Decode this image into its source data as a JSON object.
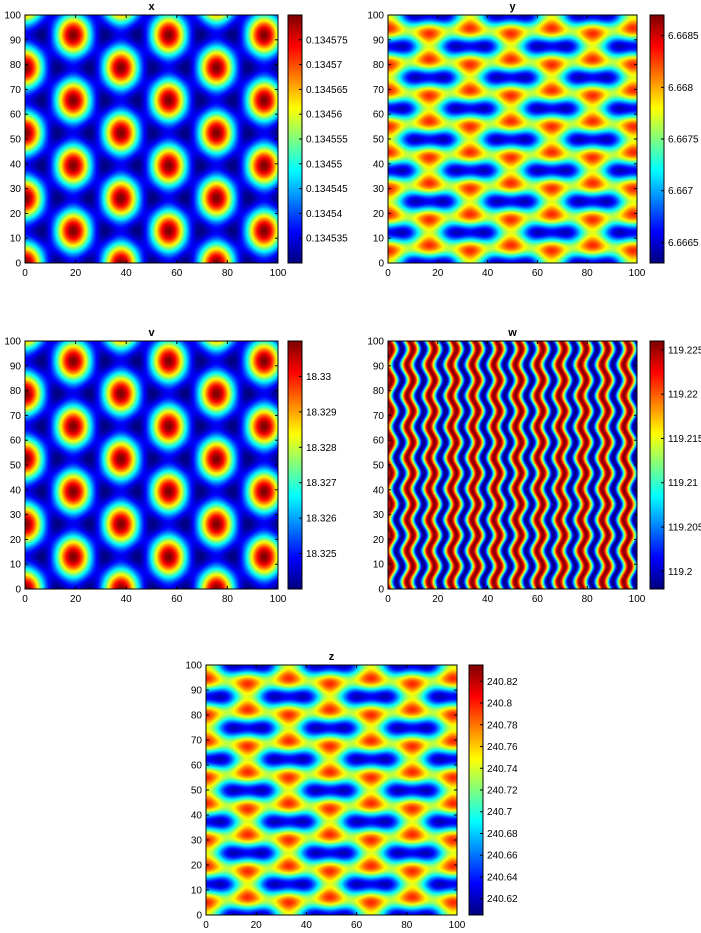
{
  "chart_data": [
    {
      "type": "heatmap",
      "title": "x",
      "pattern": "hex",
      "colormap": "jet",
      "x_range": [
        0,
        100
      ],
      "y_range": [
        0,
        100
      ],
      "x_ticks": [
        0,
        20,
        40,
        60,
        80,
        100
      ],
      "y_ticks": [
        0,
        10,
        20,
        30,
        40,
        50,
        60,
        70,
        80,
        90,
        100
      ],
      "colorbar_range": [
        0.13453,
        0.13458
      ],
      "colorbar_ticks": [
        "0.134535",
        "0.13454",
        "0.134545",
        "0.13455",
        "0.134555",
        "0.13456",
        "0.134565",
        "0.13457",
        "0.134575"
      ],
      "colorbar_tick_values": [
        0.134535,
        0.13454,
        0.134545,
        0.13455,
        0.134555,
        0.13456,
        0.134565,
        0.13457,
        0.134575
      ]
    },
    {
      "type": "heatmap",
      "title": "y",
      "pattern": "hex-stripes",
      "colormap": "jet",
      "x_range": [
        0,
        100
      ],
      "y_range": [
        0,
        100
      ],
      "x_ticks": [
        0,
        20,
        40,
        60,
        80,
        100
      ],
      "y_ticks": [
        0,
        10,
        20,
        30,
        40,
        50,
        60,
        70,
        80,
        90,
        100
      ],
      "colorbar_range": [
        6.6663,
        6.6687
      ],
      "colorbar_ticks": [
        "6.6665",
        "6.667",
        "6.6675",
        "6.668",
        "6.6685"
      ],
      "colorbar_tick_values": [
        6.6665,
        6.667,
        6.6675,
        6.668,
        6.6685
      ]
    },
    {
      "type": "heatmap",
      "title": "v",
      "pattern": "hex",
      "colormap": "jet",
      "x_range": [
        0,
        100
      ],
      "y_range": [
        0,
        100
      ],
      "x_ticks": [
        0,
        20,
        40,
        60,
        80,
        100
      ],
      "y_ticks": [
        0,
        10,
        20,
        30,
        40,
        50,
        60,
        70,
        80,
        90,
        100
      ],
      "colorbar_range": [
        18.324,
        18.331
      ],
      "colorbar_ticks": [
        "18.325",
        "18.326",
        "18.327",
        "18.328",
        "18.329",
        "18.33"
      ],
      "colorbar_tick_values": [
        18.325,
        18.326,
        18.327,
        18.328,
        18.329,
        18.33
      ]
    },
    {
      "type": "heatmap",
      "title": "w",
      "pattern": "vertical-waves",
      "colormap": "jet",
      "x_range": [
        0,
        100
      ],
      "y_range": [
        0,
        100
      ],
      "x_ticks": [
        0,
        20,
        40,
        60,
        80,
        100
      ],
      "y_ticks": [
        0,
        10,
        20,
        30,
        40,
        50,
        60,
        70,
        80,
        90,
        100
      ],
      "colorbar_range": [
        119.198,
        119.226
      ],
      "colorbar_ticks": [
        "119.2",
        "119.205",
        "119.21",
        "119.215",
        "119.22",
        "119.225"
      ],
      "colorbar_tick_values": [
        119.2,
        119.205,
        119.21,
        119.215,
        119.22,
        119.225
      ]
    },
    {
      "type": "heatmap",
      "title": "z",
      "pattern": "hex-stripes",
      "colormap": "jet",
      "x_range": [
        0,
        100
      ],
      "y_range": [
        0,
        100
      ],
      "x_ticks": [
        0,
        20,
        40,
        60,
        80,
        100
      ],
      "y_ticks": [
        0,
        10,
        20,
        30,
        40,
        50,
        60,
        70,
        80,
        90,
        100
      ],
      "colorbar_range": [
        240.605,
        240.835
      ],
      "colorbar_ticks": [
        "240.62",
        "240.64",
        "240.66",
        "240.68",
        "240.7",
        "240.72",
        "240.74",
        "240.76",
        "240.78",
        "240.8",
        "240.82"
      ],
      "colorbar_tick_values": [
        240.62,
        240.64,
        240.66,
        240.68,
        240.7,
        240.72,
        240.74,
        240.76,
        240.78,
        240.8,
        240.82
      ]
    }
  ]
}
